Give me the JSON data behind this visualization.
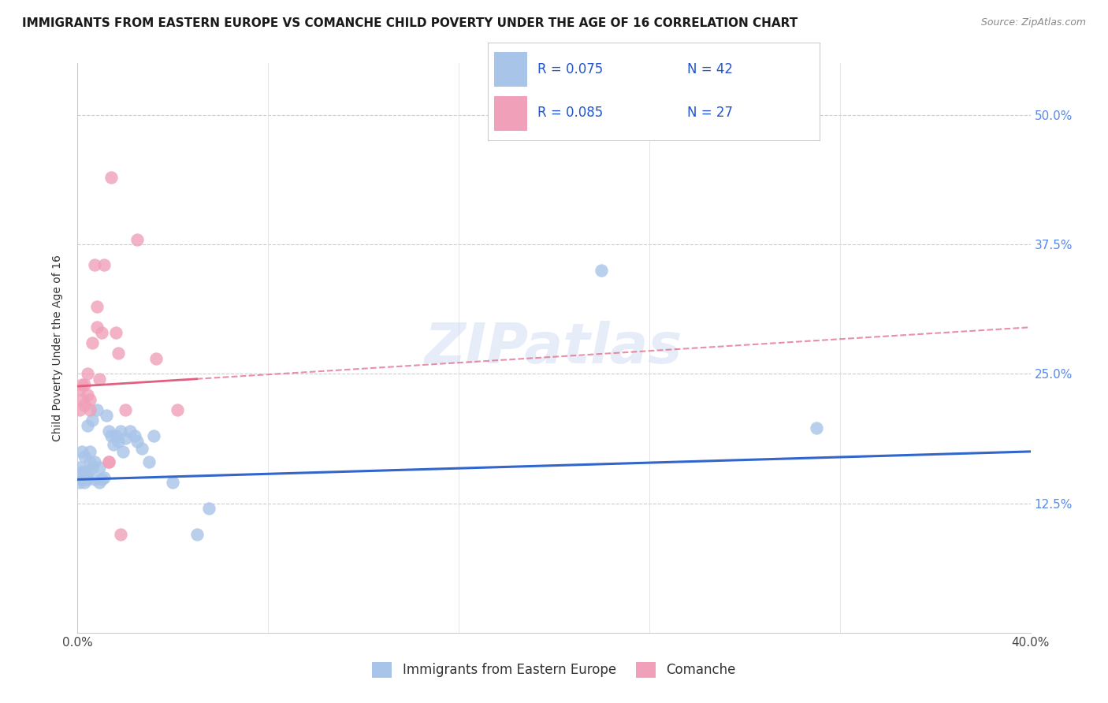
{
  "title": "IMMIGRANTS FROM EASTERN EUROPE VS COMANCHE CHILD POVERTY UNDER THE AGE OF 16 CORRELATION CHART",
  "source": "Source: ZipAtlas.com",
  "ylabel": "Child Poverty Under the Age of 16",
  "legend_label1": "Immigrants from Eastern Europe",
  "legend_label2": "Comanche",
  "R1": 0.075,
  "N1": 42,
  "R2": 0.085,
  "N2": 27,
  "color_blue": "#a8c4e8",
  "color_pink": "#f0a0b8",
  "line_color_blue": "#3366cc",
  "line_color_pink": "#e06080",
  "blue_points_x": [
    0.001,
    0.001,
    0.002,
    0.002,
    0.002,
    0.003,
    0.003,
    0.003,
    0.004,
    0.004,
    0.004,
    0.005,
    0.005,
    0.006,
    0.006,
    0.007,
    0.007,
    0.008,
    0.009,
    0.009,
    0.01,
    0.011,
    0.012,
    0.013,
    0.014,
    0.015,
    0.016,
    0.017,
    0.018,
    0.019,
    0.02,
    0.022,
    0.024,
    0.025,
    0.027,
    0.03,
    0.032,
    0.04,
    0.05,
    0.055,
    0.22,
    0.31
  ],
  "blue_points_y": [
    0.145,
    0.16,
    0.148,
    0.155,
    0.175,
    0.145,
    0.155,
    0.17,
    0.148,
    0.155,
    0.2,
    0.175,
    0.165,
    0.16,
    0.205,
    0.148,
    0.165,
    0.215,
    0.145,
    0.16,
    0.148,
    0.15,
    0.21,
    0.195,
    0.19,
    0.182,
    0.19,
    0.185,
    0.195,
    0.175,
    0.188,
    0.195,
    0.19,
    0.185,
    0.178,
    0.165,
    0.19,
    0.145,
    0.095,
    0.12,
    0.35,
    0.198
  ],
  "pink_points_x": [
    0.001,
    0.001,
    0.002,
    0.002,
    0.003,
    0.003,
    0.004,
    0.004,
    0.005,
    0.005,
    0.006,
    0.007,
    0.008,
    0.008,
    0.009,
    0.01,
    0.011,
    0.013,
    0.013,
    0.014,
    0.016,
    0.017,
    0.018,
    0.02,
    0.025,
    0.033,
    0.042
  ],
  "pink_points_y": [
    0.235,
    0.215,
    0.225,
    0.24,
    0.22,
    0.24,
    0.23,
    0.25,
    0.225,
    0.215,
    0.28,
    0.355,
    0.295,
    0.315,
    0.245,
    0.29,
    0.355,
    0.165,
    0.165,
    0.44,
    0.29,
    0.27,
    0.095,
    0.215,
    0.38,
    0.265,
    0.215
  ],
  "xlim": [
    0.0,
    0.4
  ],
  "ylim": [
    0.0,
    0.55
  ],
  "ytick_vals": [
    0.125,
    0.25,
    0.375,
    0.5
  ],
  "ytick_labels": [
    "12.5%",
    "25.0%",
    "37.5%",
    "50.0%"
  ],
  "xtick_vals": [
    0.0,
    0.08,
    0.16,
    0.24,
    0.32,
    0.4
  ],
  "blue_line_y0": 0.148,
  "blue_line_y1": 0.175,
  "pink_line_y0": 0.238,
  "pink_line_y1": 0.295,
  "watermark": "ZIPatlas"
}
